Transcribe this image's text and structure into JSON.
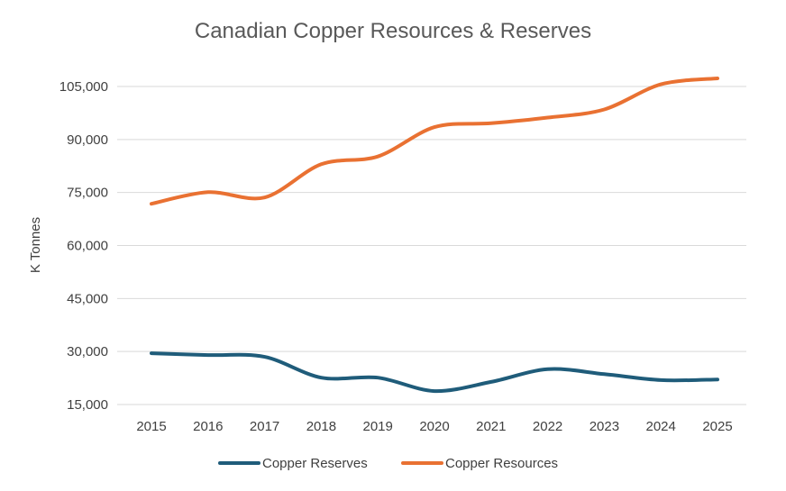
{
  "chart_data": {
    "type": "line",
    "title": "Canadian Copper Resources & Reserves",
    "xlabel": "",
    "ylabel": "K Tonnes",
    "x": [
      "2015",
      "2016",
      "2017",
      "2018",
      "2019",
      "2020",
      "2021",
      "2022",
      "2023",
      "2024",
      "2025"
    ],
    "yticks": [
      15000,
      30000,
      45000,
      60000,
      75000,
      90000,
      105000
    ],
    "ytick_labels": [
      "15,000",
      "30,000",
      "45,000",
      "60,000",
      "75,000",
      "90,000",
      "105,000"
    ],
    "ylim": [
      15000,
      105000
    ],
    "grid": true,
    "legend_position": "bottom",
    "series": [
      {
        "name": "Copper Reserves",
        "color": "#1f5c7a",
        "values": [
          29500,
          29000,
          28500,
          22600,
          22600,
          18800,
          21400,
          25000,
          23600,
          21900,
          22100
        ]
      },
      {
        "name": "Copper Resources",
        "color": "#e97132",
        "values": [
          71800,
          75100,
          73600,
          83000,
          85200,
          93500,
          94600,
          96200,
          98500,
          105600,
          107300
        ]
      }
    ]
  }
}
